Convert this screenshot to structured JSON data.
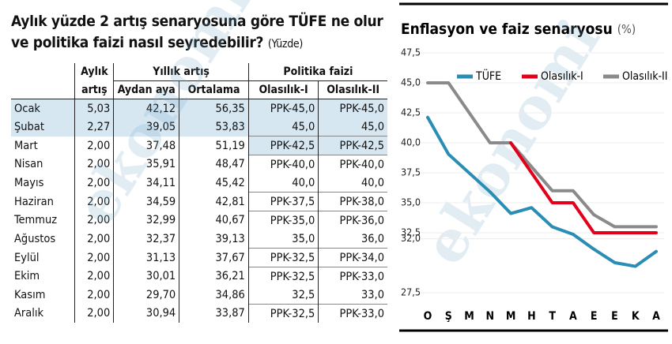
{
  "table": {
    "title": "Aylık yüzde 2 artış senaryosuna göre TÜFE ne olur ve politika faizi nasıl seyredebilir?",
    "unit": "(Yüzde)",
    "header": {
      "monthly_1": "Aylık",
      "monthly_2": "artış",
      "annual": "Yıllık artış",
      "policy": "Politika faizi",
      "columns": [
        "Aydan aya",
        "Ortalama",
        "Olasılık-I",
        "Olasılık-II"
      ]
    },
    "rows": [
      [
        "Ocak",
        "5,03",
        "42,12",
        "56,35",
        "PPK-45,0",
        "PPK-45,0"
      ],
      [
        "Şubat",
        "2,27",
        "39,05",
        "53,83",
        "45,0",
        "45,0"
      ],
      [
        "Mart",
        "2,00",
        "37,48",
        "51,19",
        "PPK-42,5",
        "PPK-42,5"
      ],
      [
        "Nisan",
        "2,00",
        "35,91",
        "48,47",
        "PPK-40,0",
        "PPK-40,0"
      ],
      [
        "Mayıs",
        "2,00",
        "34,11",
        "45,42",
        "40,0",
        "40,0"
      ],
      [
        "Haziran",
        "2,00",
        "34,59",
        "42,81",
        "PPK-37,5",
        "PPK-38,0"
      ],
      [
        "Temmuz",
        "2,00",
        "32,99",
        "40,67",
        "PPK-35,0",
        "PPK-36,0"
      ],
      [
        "Ağustos",
        "2,00",
        "32,37",
        "39,13",
        "35,0",
        "36,0"
      ],
      [
        "Eylül",
        "2,00",
        "31,13",
        "37,67",
        "PPK-32,5",
        "PPK-34,0"
      ],
      [
        "Ekim",
        "2,00",
        "30,01",
        "36,21",
        "PPK-32,5",
        "PPK-33,0"
      ],
      [
        "Kasım",
        "2,00",
        "29,70",
        "34,86",
        "32,5",
        "33,0"
      ],
      [
        "Aralık",
        "2,00",
        "30,94",
        "33,87",
        "PPK-32,5",
        "PPK-33,0"
      ]
    ]
  },
  "watermark": "ekonomi",
  "chart_data": {
    "type": "line",
    "title": "Enflasyon ve faiz senaryosu",
    "unit": "(%)",
    "categories": [
      "O",
      "Ş",
      "M",
      "N",
      "M",
      "H",
      "T",
      "A",
      "E",
      "E",
      "K",
      "A"
    ],
    "series": [
      {
        "name": "TÜFE",
        "color": "#2a8db3",
        "values": [
          42.12,
          39.05,
          37.48,
          35.91,
          34.11,
          34.59,
          32.99,
          32.37,
          31.13,
          30.01,
          29.7,
          30.94
        ]
      },
      {
        "name": "Olasılık-II",
        "color": "#8a8a8a",
        "values": [
          45,
          45,
          42.5,
          40,
          40,
          38,
          36,
          36,
          34,
          33,
          33,
          33
        ]
      },
      {
        "name": "Olasılık-I",
        "color": "#e3001b",
        "values": [
          null,
          null,
          null,
          null,
          40,
          37.5,
          35,
          35,
          32.5,
          32.5,
          32.5,
          32.5
        ]
      }
    ],
    "legend_order": [
      "TÜFE",
      "Olasılık-I",
      "Olasılık-II"
    ],
    "ylim": [
      27.5,
      47.5
    ],
    "yticks": [
      {
        "value": 47.5,
        "label": "47,5"
      },
      {
        "value": 45,
        "label": "45,0"
      },
      {
        "value": 42.5,
        "label": "42,5"
      },
      {
        "value": 40,
        "label": "40,0"
      },
      {
        "value": 37.5,
        "label": "37,5"
      },
      {
        "value": 35,
        "label": "35,0"
      },
      {
        "value": 32.5,
        "label": "32,5"
      },
      {
        "value": 32,
        "label": "32,0"
      },
      {
        "value": 27.5,
        "label": "27,5"
      }
    ],
    "grid": true
  }
}
